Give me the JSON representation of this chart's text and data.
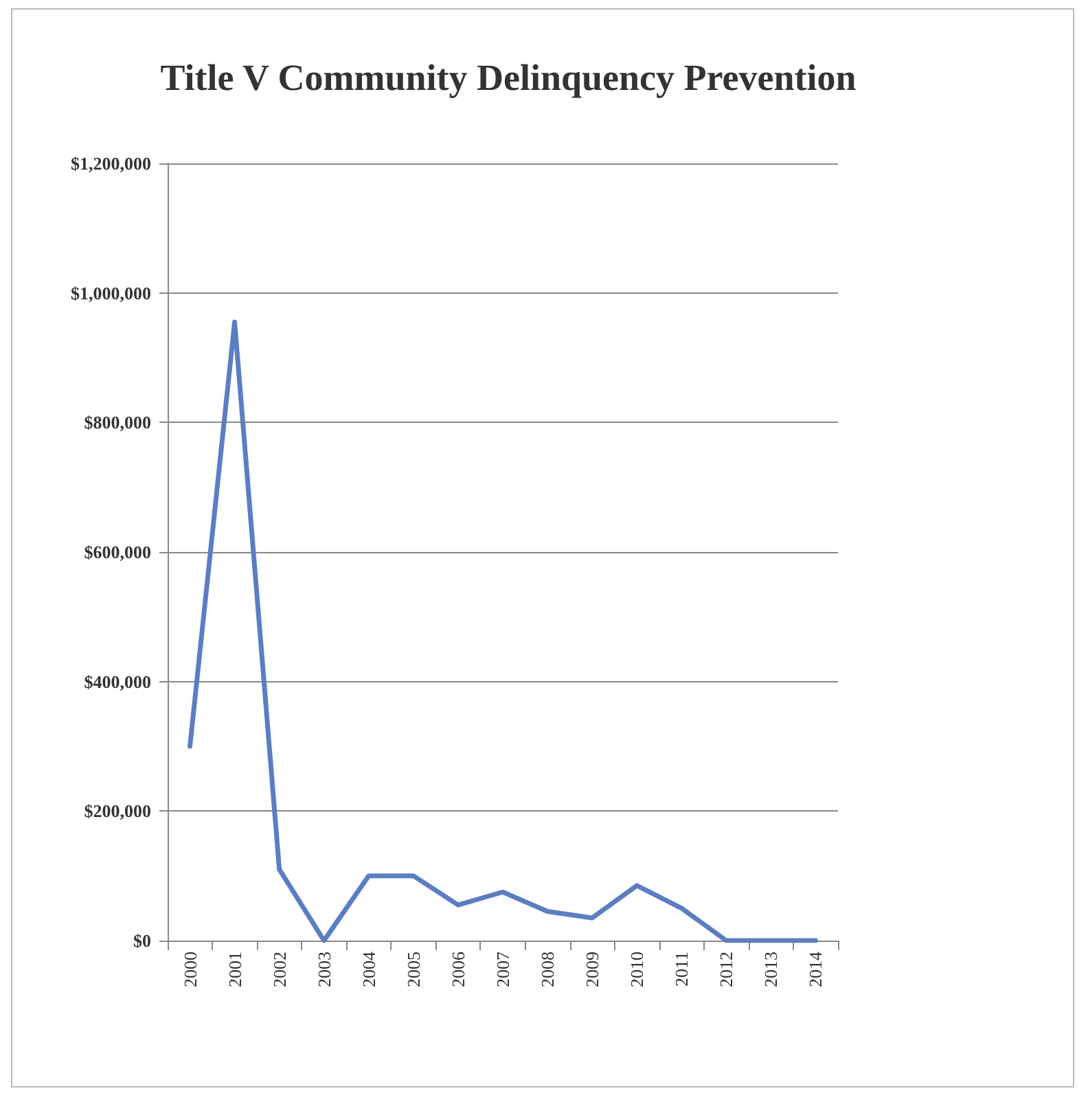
{
  "chart_data": {
    "type": "line",
    "title": "Title V Community Delinquency Prevention",
    "categories": [
      "2000",
      "2001",
      "2002",
      "2003",
      "2004",
      "2005",
      "2006",
      "2007",
      "2008",
      "2009",
      "2010",
      "2011",
      "2012",
      "2013",
      "2014"
    ],
    "series": [
      {
        "color": "#5b7ec2",
        "values": [
          300000,
          955000,
          110000,
          0,
          100000,
          100000,
          55000,
          75000,
          45000,
          35000,
          85000,
          50000,
          0,
          0,
          0
        ]
      }
    ],
    "ylim": [
      0,
      1200000
    ],
    "yticks": [
      {
        "value": 0,
        "label": "$0"
      },
      {
        "value": 200000,
        "label": "$200,000"
      },
      {
        "value": 400000,
        "label": "$400,000"
      },
      {
        "value": 600000,
        "label": "$600,000"
      },
      {
        "value": 800000,
        "label": "$800,000"
      },
      {
        "value": 1000000,
        "label": "$1,000,000"
      },
      {
        "value": 1200000,
        "label": "$1,200,000"
      }
    ],
    "grid": "y",
    "marker": "none",
    "line_style": "solid"
  }
}
